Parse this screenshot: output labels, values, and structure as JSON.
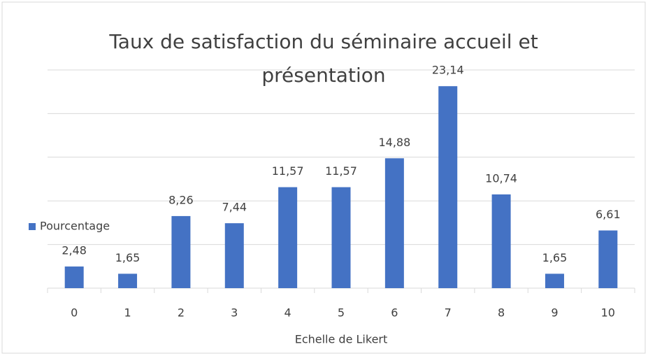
{
  "chart_data": {
    "type": "bar",
    "title": "Taux de satisfaction du séminaire accueil et présentation",
    "x_label": "Echelle de Likert",
    "categories": [
      "0",
      "1",
      "2",
      "3",
      "4",
      "5",
      "6",
      "7",
      "8",
      "9",
      "10"
    ],
    "series": [
      {
        "name": "Pourcentage",
        "color": "#4472c4",
        "values": [
          2.48,
          1.65,
          8.26,
          7.44,
          11.57,
          11.57,
          14.88,
          23.14,
          10.74,
          1.65,
          6.61
        ],
        "value_labels": [
          "2,48",
          "1,65",
          "8,26",
          "7,44",
          "11,57",
          "11,57",
          "14,88",
          "23,14",
          "10,74",
          "1,65",
          "6,61"
        ]
      }
    ],
    "ylim": [
      0,
      25
    ],
    "yticks": [
      0,
      5,
      10,
      15,
      20,
      25
    ],
    "grid": true,
    "legend": "left"
  }
}
